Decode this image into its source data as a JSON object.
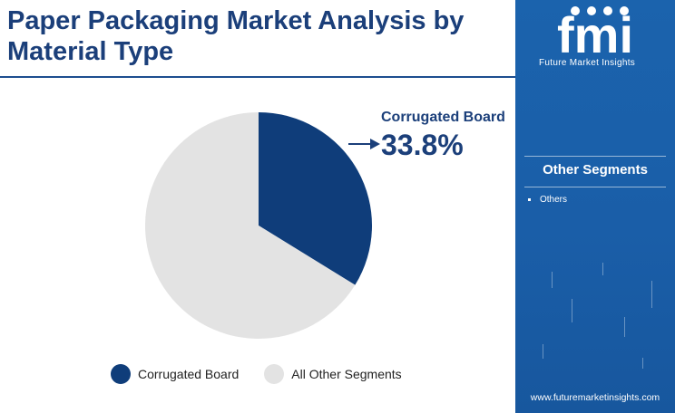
{
  "title": "Paper Packaging Market Analysis by Material Type",
  "chart_data": {
    "type": "pie",
    "slices": [
      {
        "label": "Corrugated Board",
        "value": 33.8,
        "color": "#0f3d7a"
      },
      {
        "label": "All Other Segments",
        "value": 66.2,
        "color": "#e3e3e3"
      }
    ],
    "callout": {
      "label": "Corrugated Board",
      "value": "33.8%"
    },
    "legend": {
      "position": "bottom"
    }
  },
  "legend": {
    "items": [
      {
        "label": "Corrugated Board",
        "color": "#0f3d7a"
      },
      {
        "label": "All Other Segments",
        "color": "#e3e3e3"
      }
    ]
  },
  "sidebar": {
    "logo_name": "fmi",
    "logo_caption": "Future Market Insights",
    "heading": "Other Segments",
    "items": [
      "Others"
    ],
    "url": "www.futuremarketinsights.com"
  }
}
